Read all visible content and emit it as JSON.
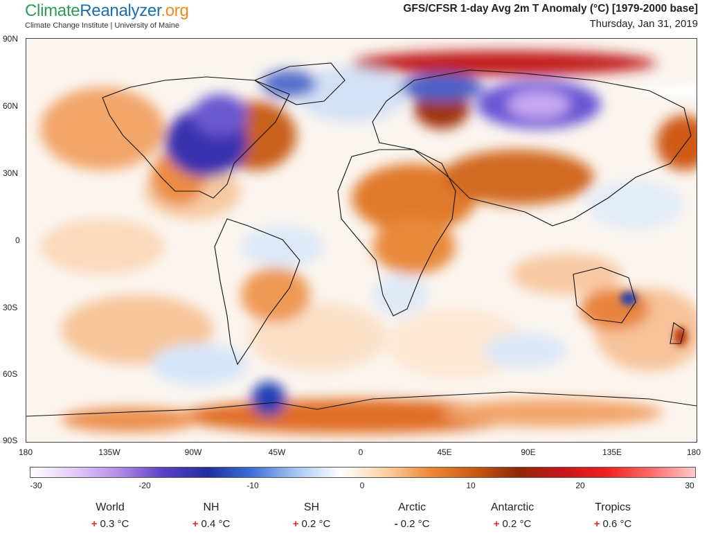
{
  "brand": {
    "part1": "Climate",
    "part2": "Reanalyzer",
    "part3": ".org",
    "subtitle": "Climate Change Institute | University of Maine"
  },
  "map": {
    "title": "GFS/CFSR 1-day Avg 2m T Anomaly (°C) [1979-2000 base]",
    "date": "Thursday, Jan 31, 2019"
  },
  "lat_labels": [
    "90N",
    "60N",
    "30N",
    "0",
    "30S",
    "60S",
    "90S"
  ],
  "lon_labels": [
    "180",
    "135W",
    "90W",
    "45W",
    "0",
    "45E",
    "90E",
    "135E",
    "180"
  ],
  "colorbar": {
    "ticks": [
      "-30",
      "-20",
      "-10",
      "0",
      "10",
      "20",
      "30"
    ],
    "range": [
      -30,
      30
    ],
    "colors": [
      "#ffffff",
      "#e3c9f7",
      "#b48ce8",
      "#5b3fc4",
      "#1f2f9e",
      "#3e6fd6",
      "#a7c8f2",
      "#ffffff",
      "#fcd2a6",
      "#ee8a3a",
      "#c85a12",
      "#8e2a05",
      "#c8141c",
      "#f0201e",
      "#ff6a6a",
      "#ffc8c8"
    ]
  },
  "stats": [
    {
      "name": "World",
      "sign": "+",
      "value": "0.3 °C"
    },
    {
      "name": "NH",
      "sign": "+",
      "value": "0.4 °C"
    },
    {
      "name": "SH",
      "sign": "+",
      "value": "0.2 °C"
    },
    {
      "name": "Arctic",
      "sign": "-",
      "value": "0.2 °C"
    },
    {
      "name": "Antarctic",
      "sign": "+",
      "value": "0.2 °C"
    },
    {
      "name": "Tropics",
      "sign": "+",
      "value": "0.6 °C"
    }
  ]
}
